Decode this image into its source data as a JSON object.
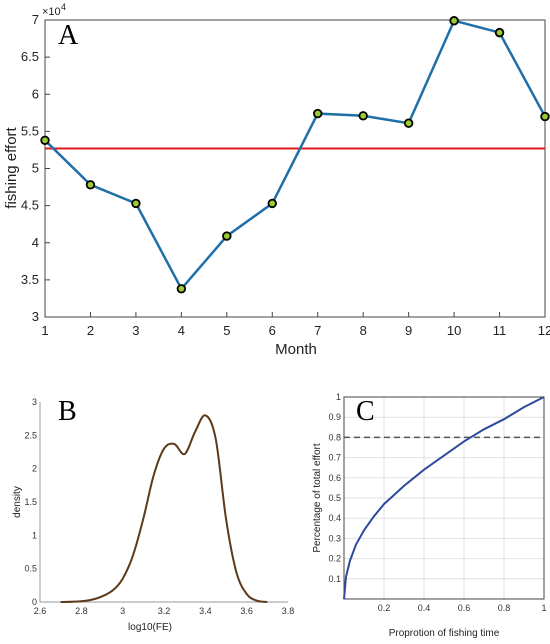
{
  "chart_data": [
    {
      "type": "line",
      "panel": "A",
      "xlabel": "Month",
      "ylabel": "fishing effort",
      "y_multiplier": "×10",
      "y_exponent": "4",
      "x": [
        1,
        2,
        3,
        4,
        5,
        6,
        7,
        8,
        9,
        10,
        11,
        12
      ],
      "xticks": [
        "1",
        "2",
        "3",
        "4",
        "5",
        "6",
        "7",
        "8",
        "9",
        "10",
        "11",
        "12"
      ],
      "yticks": [
        "3",
        "3.5",
        "4",
        "4.5",
        "5",
        "5.5",
        "6",
        "6.5",
        "7"
      ],
      "series": [
        {
          "values": [
            5.38,
            4.78,
            4.53,
            3.38,
            4.09,
            4.53,
            5.74,
            5.71,
            5.61,
            6.99,
            6.83,
            5.7
          ],
          "color": "#1f6fa8",
          "marker_fill": "#9acd32"
        }
      ],
      "reference_line": {
        "y": 5.27,
        "color": "#e31a1c"
      },
      "xlim": [
        1,
        12
      ],
      "ylim": [
        3,
        7
      ],
      "grid": false
    },
    {
      "type": "line",
      "panel": "B",
      "xlabel": "log10(FE)",
      "ylabel": "density",
      "xticks": [
        "2.6",
        "2.8",
        "3",
        "3.2",
        "3.4",
        "3.6",
        "3.8"
      ],
      "yticks": [
        "0",
        "0.5",
        "1",
        "1.5",
        "2",
        "2.5",
        "3"
      ],
      "series": [
        {
          "x": [
            2.7,
            2.8,
            2.88,
            2.95,
            3.0,
            3.05,
            3.1,
            3.15,
            3.2,
            3.25,
            3.3,
            3.35,
            3.4,
            3.45,
            3.5,
            3.55,
            3.6,
            3.65,
            3.7
          ],
          "values": [
            0.0,
            0.01,
            0.06,
            0.17,
            0.35,
            0.7,
            1.25,
            1.9,
            2.3,
            2.37,
            2.22,
            2.55,
            2.8,
            2.45,
            1.25,
            0.45,
            0.12,
            0.02,
            0.0
          ],
          "color": "#5c3a1a"
        }
      ],
      "xlim": [
        2.6,
        3.8
      ],
      "ylim": [
        0,
        3
      ],
      "grid": false
    },
    {
      "type": "line",
      "panel": "C",
      "xlabel": "Proprotion of fishing time",
      "ylabel": "Percentage of total effort",
      "xticks": [
        "0.2",
        "0.4",
        "0.6",
        "0.8",
        "1"
      ],
      "yticks": [
        "0.1",
        "0.2",
        "0.3",
        "0.4",
        "0.5",
        "0.6",
        "0.7",
        "0.8",
        "0.9",
        "1"
      ],
      "series": [
        {
          "x": [
            0.0,
            0.01,
            0.03,
            0.06,
            0.1,
            0.15,
            0.2,
            0.3,
            0.4,
            0.5,
            0.6,
            0.7,
            0.8,
            0.9,
            1.0
          ],
          "values": [
            0.0,
            0.11,
            0.19,
            0.27,
            0.34,
            0.41,
            0.47,
            0.56,
            0.64,
            0.71,
            0.78,
            0.84,
            0.89,
            0.95,
            1.0
          ],
          "color": "#2e4a9e"
        }
      ],
      "reference_line": {
        "y": 0.8,
        "color": "#555555",
        "style": "dashed"
      },
      "xlim": [
        0,
        1
      ],
      "ylim": [
        0,
        1
      ],
      "grid": true
    }
  ]
}
